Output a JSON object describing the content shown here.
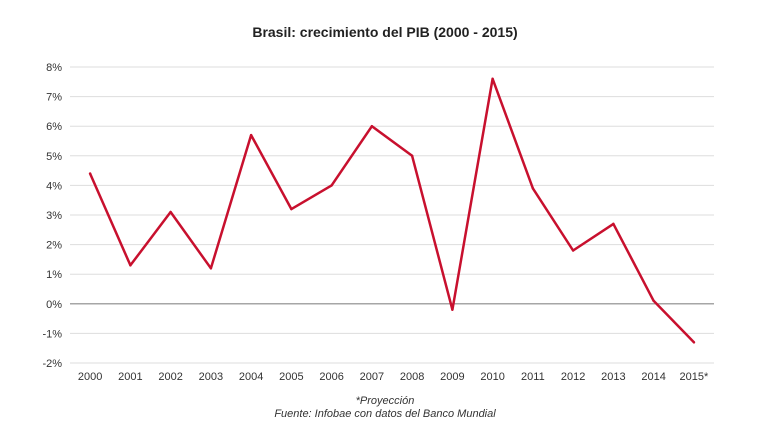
{
  "chart_data": {
    "type": "line",
    "title": "Brasil: crecimiento del PIB (2000 - 2015)",
    "xlabel": "",
    "ylabel": "",
    "categories": [
      "2000",
      "2001",
      "2002",
      "2003",
      "2004",
      "2005",
      "2006",
      "2007",
      "2008",
      "2009",
      "2010",
      "2011",
      "2012",
      "2013",
      "2014",
      "2015*"
    ],
    "series": [
      {
        "values": [
          4.4,
          1.3,
          3.1,
          1.2,
          5.7,
          3.2,
          4.0,
          6.0,
          5.0,
          -0.2,
          7.6,
          3.9,
          1.8,
          2.7,
          0.1,
          -1.3
        ],
        "color": "#c8102e"
      }
    ],
    "ylim": [
      -2,
      8
    ],
    "yticks": [
      -2,
      -1,
      0,
      1,
      2,
      3,
      4,
      5,
      6,
      7,
      8
    ],
    "ytick_labels": [
      "-2%",
      "-1%",
      "0%",
      "1%",
      "2%",
      "3%",
      "4%",
      "5%",
      "6%",
      "7%",
      "8%"
    ],
    "grid": true,
    "legend": "none",
    "colors": {
      "line": "#c8102e",
      "grid": "#dddddd",
      "zero_line": "#888888"
    }
  },
  "notes": {
    "projection": "*Proyección",
    "source": "Fuente: Infobae con datos del Banco Mundial"
  }
}
